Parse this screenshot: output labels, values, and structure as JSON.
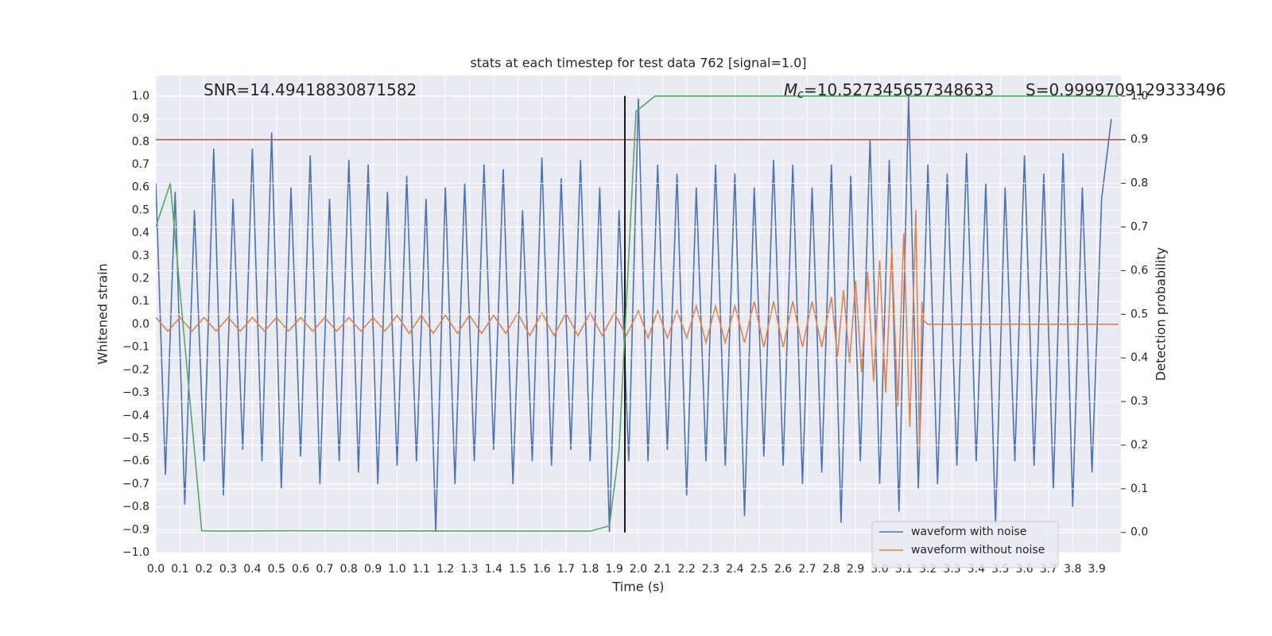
{
  "chart_data": {
    "type": "line",
    "title": "stats at each timestep for test data 762 [signal=1.0]",
    "xlabel": "Time (s)",
    "ylabel": "Whitened strain",
    "y2label": "Detection probability",
    "xlim": [
      0,
      4.0
    ],
    "ylim": [
      -1.0,
      1.09
    ],
    "y2lim": [
      -0.046,
      1.047
    ],
    "grid": true,
    "legend": "lower right",
    "xticks": [
      {
        "value": 0,
        "label": "0.0"
      },
      {
        "value": 0.1,
        "label": "0.1"
      },
      {
        "value": 0.2,
        "label": "0.2"
      },
      {
        "value": 0.3,
        "label": "0.3"
      },
      {
        "value": 0.4,
        "label": "0.4"
      },
      {
        "value": 0.5,
        "label": "0.5"
      },
      {
        "value": 0.6,
        "label": "0.6"
      },
      {
        "value": 0.7,
        "label": "0.7"
      },
      {
        "value": 0.8,
        "label": "0.8"
      },
      {
        "value": 0.9,
        "label": "0.9"
      },
      {
        "value": 1,
        "label": "1.0"
      },
      {
        "value": 1.1,
        "label": "1.1"
      },
      {
        "value": 1.2,
        "label": "1.2"
      },
      {
        "value": 1.3,
        "label": "1.3"
      },
      {
        "value": 1.4,
        "label": "1.4"
      },
      {
        "value": 1.5,
        "label": "1.5"
      },
      {
        "value": 1.6,
        "label": "1.6"
      },
      {
        "value": 1.7,
        "label": "1.7"
      },
      {
        "value": 1.8,
        "label": "1.8"
      },
      {
        "value": 1.9,
        "label": "1.9"
      },
      {
        "value": 2,
        "label": "2.0"
      },
      {
        "value": 2.1,
        "label": "2.1"
      },
      {
        "value": 2.2,
        "label": "2.2"
      },
      {
        "value": 2.3,
        "label": "2.3"
      },
      {
        "value": 2.4,
        "label": "2.4"
      },
      {
        "value": 2.5,
        "label": "2.5"
      },
      {
        "value": 2.6,
        "label": "2.6"
      },
      {
        "value": 2.7,
        "label": "2.7"
      },
      {
        "value": 2.8,
        "label": "2.8"
      },
      {
        "value": 2.9,
        "label": "2.9"
      },
      {
        "value": 3,
        "label": "3.0"
      },
      {
        "value": 3.1,
        "label": "3.1"
      },
      {
        "value": 3.2,
        "label": "3.2"
      },
      {
        "value": 3.3,
        "label": "3.3"
      },
      {
        "value": 3.4,
        "label": "3.4"
      },
      {
        "value": 3.5,
        "label": "3.5"
      },
      {
        "value": 3.6,
        "label": "3.6"
      },
      {
        "value": 3.7,
        "label": "3.7"
      },
      {
        "value": 3.8,
        "label": "3.8"
      },
      {
        "value": 3.9,
        "label": "3.9"
      }
    ],
    "yticks": [
      {
        "value": 1,
        "label": "1.0"
      },
      {
        "value": 0.9,
        "label": "0.9"
      },
      {
        "value": 0.8,
        "label": "0.8"
      },
      {
        "value": 0.7,
        "label": "0.7"
      },
      {
        "value": 0.6,
        "label": "0.6"
      },
      {
        "value": 0.5,
        "label": "0.5"
      },
      {
        "value": 0.4,
        "label": "0.4"
      },
      {
        "value": 0.3,
        "label": "0.3"
      },
      {
        "value": 0.2,
        "label": "0.2"
      },
      {
        "value": 0.1,
        "label": "0.1"
      },
      {
        "value": 0,
        "label": "0.0"
      },
      {
        "value": -0.1,
        "label": "−0.1"
      },
      {
        "value": -0.2,
        "label": "−0.2"
      },
      {
        "value": -0.3,
        "label": "−0.3"
      },
      {
        "value": -0.4,
        "label": "−0.4"
      },
      {
        "value": -0.5,
        "label": "−0.5"
      },
      {
        "value": -0.6,
        "label": "−0.6"
      },
      {
        "value": -0.7,
        "label": "−0.7"
      },
      {
        "value": -0.8,
        "label": "−0.8"
      },
      {
        "value": -0.9,
        "label": "−0.9"
      },
      {
        "value": -1,
        "label": "−1.0"
      }
    ],
    "y2ticks": [
      {
        "value": 0,
        "label": "0.0"
      },
      {
        "value": 0.1,
        "label": "0.1"
      },
      {
        "value": 0.2,
        "label": "0.2"
      },
      {
        "value": 0.3,
        "label": "0.3"
      },
      {
        "value": 0.4,
        "label": "0.4"
      },
      {
        "value": 0.5,
        "label": "0.5"
      },
      {
        "value": 0.6,
        "label": "0.6"
      },
      {
        "value": 0.7,
        "label": "0.7"
      },
      {
        "value": 0.8,
        "label": "0.8"
      },
      {
        "value": 0.9,
        "label": "0.9"
      },
      {
        "value": 1,
        "label": "1.0"
      }
    ],
    "series": [
      {
        "name": "waveform with noise",
        "color": "#4c72b0",
        "x": [
          0,
          0.04,
          0.08,
          0.12,
          0.16,
          0.2,
          0.24,
          0.28,
          0.32,
          0.36,
          0.4,
          0.44,
          0.48,
          0.52,
          0.56,
          0.6,
          0.64,
          0.68,
          0.72,
          0.76,
          0.8,
          0.84,
          0.88,
          0.92,
          0.96,
          1.0,
          1.04,
          1.08,
          1.12,
          1.16,
          1.2,
          1.24,
          1.28,
          1.32,
          1.36,
          1.4,
          1.44,
          1.48,
          1.52,
          1.56,
          1.6,
          1.64,
          1.68,
          1.72,
          1.76,
          1.8,
          1.84,
          1.88,
          1.92,
          1.96,
          2.0,
          2.04,
          2.08,
          2.12,
          2.16,
          2.2,
          2.24,
          2.28,
          2.32,
          2.36,
          2.4,
          2.44,
          2.48,
          2.52,
          2.56,
          2.6,
          2.64,
          2.68,
          2.72,
          2.76,
          2.8,
          2.84,
          2.88,
          2.92,
          2.96,
          3.0,
          3.04,
          3.08,
          3.12,
          3.16,
          3.2,
          3.24,
          3.28,
          3.32,
          3.36,
          3.4,
          3.44,
          3.48,
          3.52,
          3.56,
          3.6,
          3.64,
          3.68,
          3.72,
          3.76,
          3.8,
          3.84,
          3.88,
          3.92,
          3.96
        ],
        "values": [
          0.62,
          -0.66,
          0.58,
          -0.79,
          0.5,
          -0.6,
          0.77,
          -0.75,
          0.55,
          -0.55,
          0.77,
          -0.6,
          0.84,
          -0.72,
          0.6,
          -0.58,
          0.74,
          -0.7,
          0.55,
          -0.6,
          0.72,
          -0.65,
          0.7,
          -0.7,
          0.58,
          -0.62,
          0.65,
          -0.6,
          0.55,
          -0.91,
          0.6,
          -0.7,
          0.62,
          -0.6,
          0.7,
          -0.55,
          0.68,
          -0.7,
          0.5,
          -0.6,
          0.73,
          -0.62,
          0.64,
          -0.55,
          0.72,
          -0.6,
          0.6,
          -0.91,
          0.5,
          -0.6,
          0.99,
          -0.6,
          0.7,
          -0.55,
          0.66,
          -0.75,
          0.6,
          -0.6,
          0.7,
          -0.62,
          0.66,
          -0.84,
          0.6,
          -0.58,
          0.72,
          -0.62,
          0.7,
          -0.7,
          0.6,
          -0.65,
          0.7,
          -0.87,
          0.65,
          -0.6,
          0.81,
          -0.7,
          0.72,
          -0.82,
          1.0,
          -0.72,
          0.7,
          -0.7,
          0.66,
          -0.62,
          0.75,
          -0.6,
          0.62,
          -0.88,
          0.6,
          -0.6,
          0.74,
          -0.62,
          0.66,
          -0.72,
          0.75,
          -0.8,
          0.6,
          -0.65,
          0.55,
          0.9
        ]
      },
      {
        "name": "waveform without noise",
        "color": "#dd8452",
        "x": [
          0,
          0.05,
          0.1,
          0.15,
          0.2,
          0.25,
          0.3,
          0.35,
          0.4,
          0.45,
          0.5,
          0.55,
          0.6,
          0.65,
          0.7,
          0.75,
          0.8,
          0.85,
          0.9,
          0.95,
          1.0,
          1.05,
          1.1,
          1.15,
          1.2,
          1.25,
          1.3,
          1.35,
          1.4,
          1.45,
          1.5,
          1.55,
          1.6,
          1.65,
          1.7,
          1.75,
          1.8,
          1.85,
          1.9,
          1.95,
          2.0,
          2.04,
          2.08,
          2.12,
          2.16,
          2.2,
          2.24,
          2.28,
          2.32,
          2.36,
          2.4,
          2.44,
          2.48,
          2.52,
          2.56,
          2.6,
          2.64,
          2.68,
          2.72,
          2.76,
          2.8,
          2.825,
          2.85,
          2.875,
          2.9,
          2.925,
          2.95,
          2.975,
          3.0,
          3.025,
          3.05,
          3.075,
          3.1,
          3.125,
          3.15,
          3.165,
          3.175,
          3.18,
          3.2,
          3.99
        ],
        "values": [
          0.03,
          -0.03,
          0.03,
          -0.03,
          0.03,
          -0.03,
          0.03,
          -0.03,
          0.03,
          -0.03,
          0.03,
          -0.03,
          0.03,
          -0.03,
          0.03,
          -0.03,
          0.03,
          -0.03,
          0.03,
          -0.03,
          0.04,
          -0.04,
          0.04,
          -0.04,
          0.04,
          -0.04,
          0.04,
          -0.04,
          0.04,
          -0.04,
          0.05,
          -0.05,
          0.05,
          -0.05,
          0.05,
          -0.05,
          0.05,
          -0.05,
          0.05,
          -0.05,
          0.06,
          -0.06,
          0.06,
          -0.06,
          0.06,
          -0.06,
          0.08,
          -0.08,
          0.08,
          -0.08,
          0.08,
          -0.08,
          0.1,
          -0.1,
          0.1,
          -0.1,
          0.1,
          -0.1,
          0.1,
          -0.1,
          0.12,
          -0.14,
          0.15,
          -0.17,
          0.19,
          -0.21,
          0.23,
          -0.25,
          0.28,
          -0.3,
          0.33,
          -0.36,
          0.4,
          -0.45,
          0.5,
          -0.55,
          0.1,
          0.02,
          0.0,
          0.0
        ]
      },
      {
        "color": "#55a868",
        "axis": "y2",
        "x": [
          0,
          0.06,
          0.19,
          0.25,
          0.56,
          1.8,
          1.88,
          1.92,
          1.99,
          2.07,
          3.99
        ],
        "values": [
          0.7,
          0.8,
          0.004,
          0.003,
          0.004,
          0.003,
          0.015,
          0.19,
          0.965,
          1.0,
          1.0
        ]
      }
    ],
    "hlines": [
      {
        "value": 0.9,
        "axis": "y2",
        "color": "#c44e52"
      }
    ],
    "vlines": [
      {
        "x": 1.944,
        "y2range": [
          0,
          1
        ],
        "color": "#000000"
      }
    ],
    "annotations": [
      {
        "text": "SNR=14.49418830871582"
      },
      {
        "symbol": "M",
        "subscript": "c",
        "text": "=10.527345657348633"
      },
      {
        "text": "S=0.9999709129333496"
      }
    ]
  }
}
